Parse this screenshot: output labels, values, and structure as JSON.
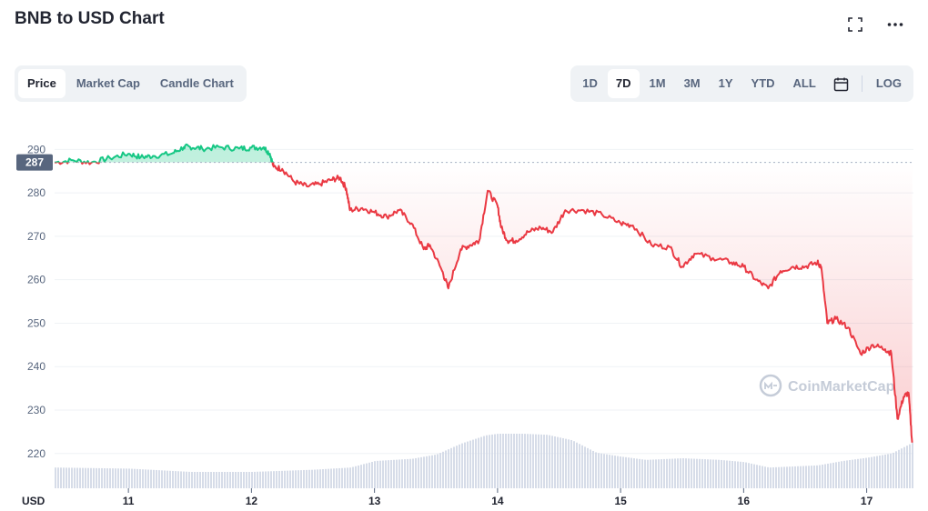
{
  "header": {
    "title": "BNB to USD Chart",
    "fullscreen_icon": "fullscreen-icon",
    "more_icon": "more-options-icon"
  },
  "tabs": [
    {
      "label": "Price",
      "active": true
    },
    {
      "label": "Market Cap",
      "active": false
    },
    {
      "label": "Candle Chart",
      "active": false
    }
  ],
  "ranges": [
    {
      "label": "1D",
      "active": false
    },
    {
      "label": "7D",
      "active": true
    },
    {
      "label": "1M",
      "active": false
    },
    {
      "label": "3M",
      "active": false
    },
    {
      "label": "1Y",
      "active": false
    },
    {
      "label": "YTD",
      "active": false
    },
    {
      "label": "ALL",
      "active": false
    }
  ],
  "calendar_icon": "calendar-icon",
  "log_label": "LOG",
  "watermark": "CoinMarketCap",
  "colors": {
    "up": "#16c784",
    "down": "#ea3943",
    "grid": "#eff2f5",
    "volume": "#cfd6e4",
    "reference_badge": "#58667e"
  },
  "chart_data": {
    "type": "line",
    "xlabel": "",
    "ylabel": "USD",
    "ylim": [
      212,
      293
    ],
    "y_ticks": [
      220,
      230,
      240,
      250,
      260,
      270,
      280,
      290
    ],
    "x_ticks": [
      "11",
      "12",
      "13",
      "14",
      "15",
      "16",
      "17"
    ],
    "x_tick_positions": [
      11,
      12,
      13,
      14,
      15,
      16,
      17
    ],
    "xlim": [
      10.4,
      17.38
    ],
    "reference_value": 287,
    "reference_label": "287",
    "price": {
      "x": [
        10.4,
        10.55,
        10.7,
        10.85,
        11.0,
        11.1,
        11.2,
        11.35,
        11.45,
        11.5,
        11.6,
        11.75,
        11.9,
        12.0,
        12.1,
        12.15,
        12.18,
        12.25,
        12.35,
        12.45,
        12.55,
        12.65,
        12.72,
        12.77,
        12.8,
        12.9,
        13.0,
        13.1,
        13.2,
        13.3,
        13.4,
        13.45,
        13.55,
        13.6,
        13.7,
        13.78,
        13.85,
        13.92,
        14.0,
        14.03,
        14.08,
        14.15,
        14.25,
        14.35,
        14.45,
        14.55,
        14.7,
        14.85,
        15.0,
        15.1,
        15.25,
        15.4,
        15.5,
        15.6,
        15.75,
        15.9,
        16.0,
        16.1,
        16.2,
        16.3,
        16.4,
        16.5,
        16.6,
        16.63,
        16.68,
        16.75,
        16.85,
        16.95,
        17.05,
        17.15,
        17.2,
        17.25,
        17.3,
        17.34,
        17.37
      ],
      "values": [
        287,
        287.5,
        287,
        288,
        289,
        288.2,
        288.5,
        289,
        290.5,
        290.6,
        290.2,
        290.5,
        290.2,
        290.4,
        290.5,
        289,
        286,
        285.5,
        282.5,
        281.5,
        282,
        283,
        283.5,
        281,
        276,
        276.5,
        275.5,
        274.5,
        276,
        273,
        267,
        268,
        262,
        258,
        267,
        268,
        269,
        280.5,
        277,
        272,
        269,
        269,
        271,
        272,
        271,
        276,
        276,
        275,
        273,
        272.5,
        268,
        267.5,
        263,
        266,
        265,
        264,
        263,
        260,
        258,
        262,
        263,
        263,
        264,
        263,
        250,
        251,
        249,
        243,
        245,
        244,
        243,
        228,
        233,
        234,
        222.5
      ]
    },
    "volume": {
      "x": [
        10.4,
        11.0,
        11.5,
        12.0,
        12.5,
        12.8,
        13.0,
        13.3,
        13.5,
        13.7,
        13.9,
        14.0,
        14.2,
        14.4,
        14.6,
        14.8,
        15.0,
        15.2,
        15.5,
        15.8,
        16.0,
        16.2,
        16.4,
        16.6,
        16.8,
        17.0,
        17.2,
        17.38
      ],
      "values": [
        0.38,
        0.36,
        0.3,
        0.3,
        0.34,
        0.38,
        0.5,
        0.54,
        0.62,
        0.82,
        0.97,
        1.0,
        1.0,
        0.98,
        0.88,
        0.65,
        0.58,
        0.52,
        0.55,
        0.52,
        0.48,
        0.38,
        0.4,
        0.42,
        0.5,
        0.56,
        0.64,
        0.85
      ]
    }
  }
}
